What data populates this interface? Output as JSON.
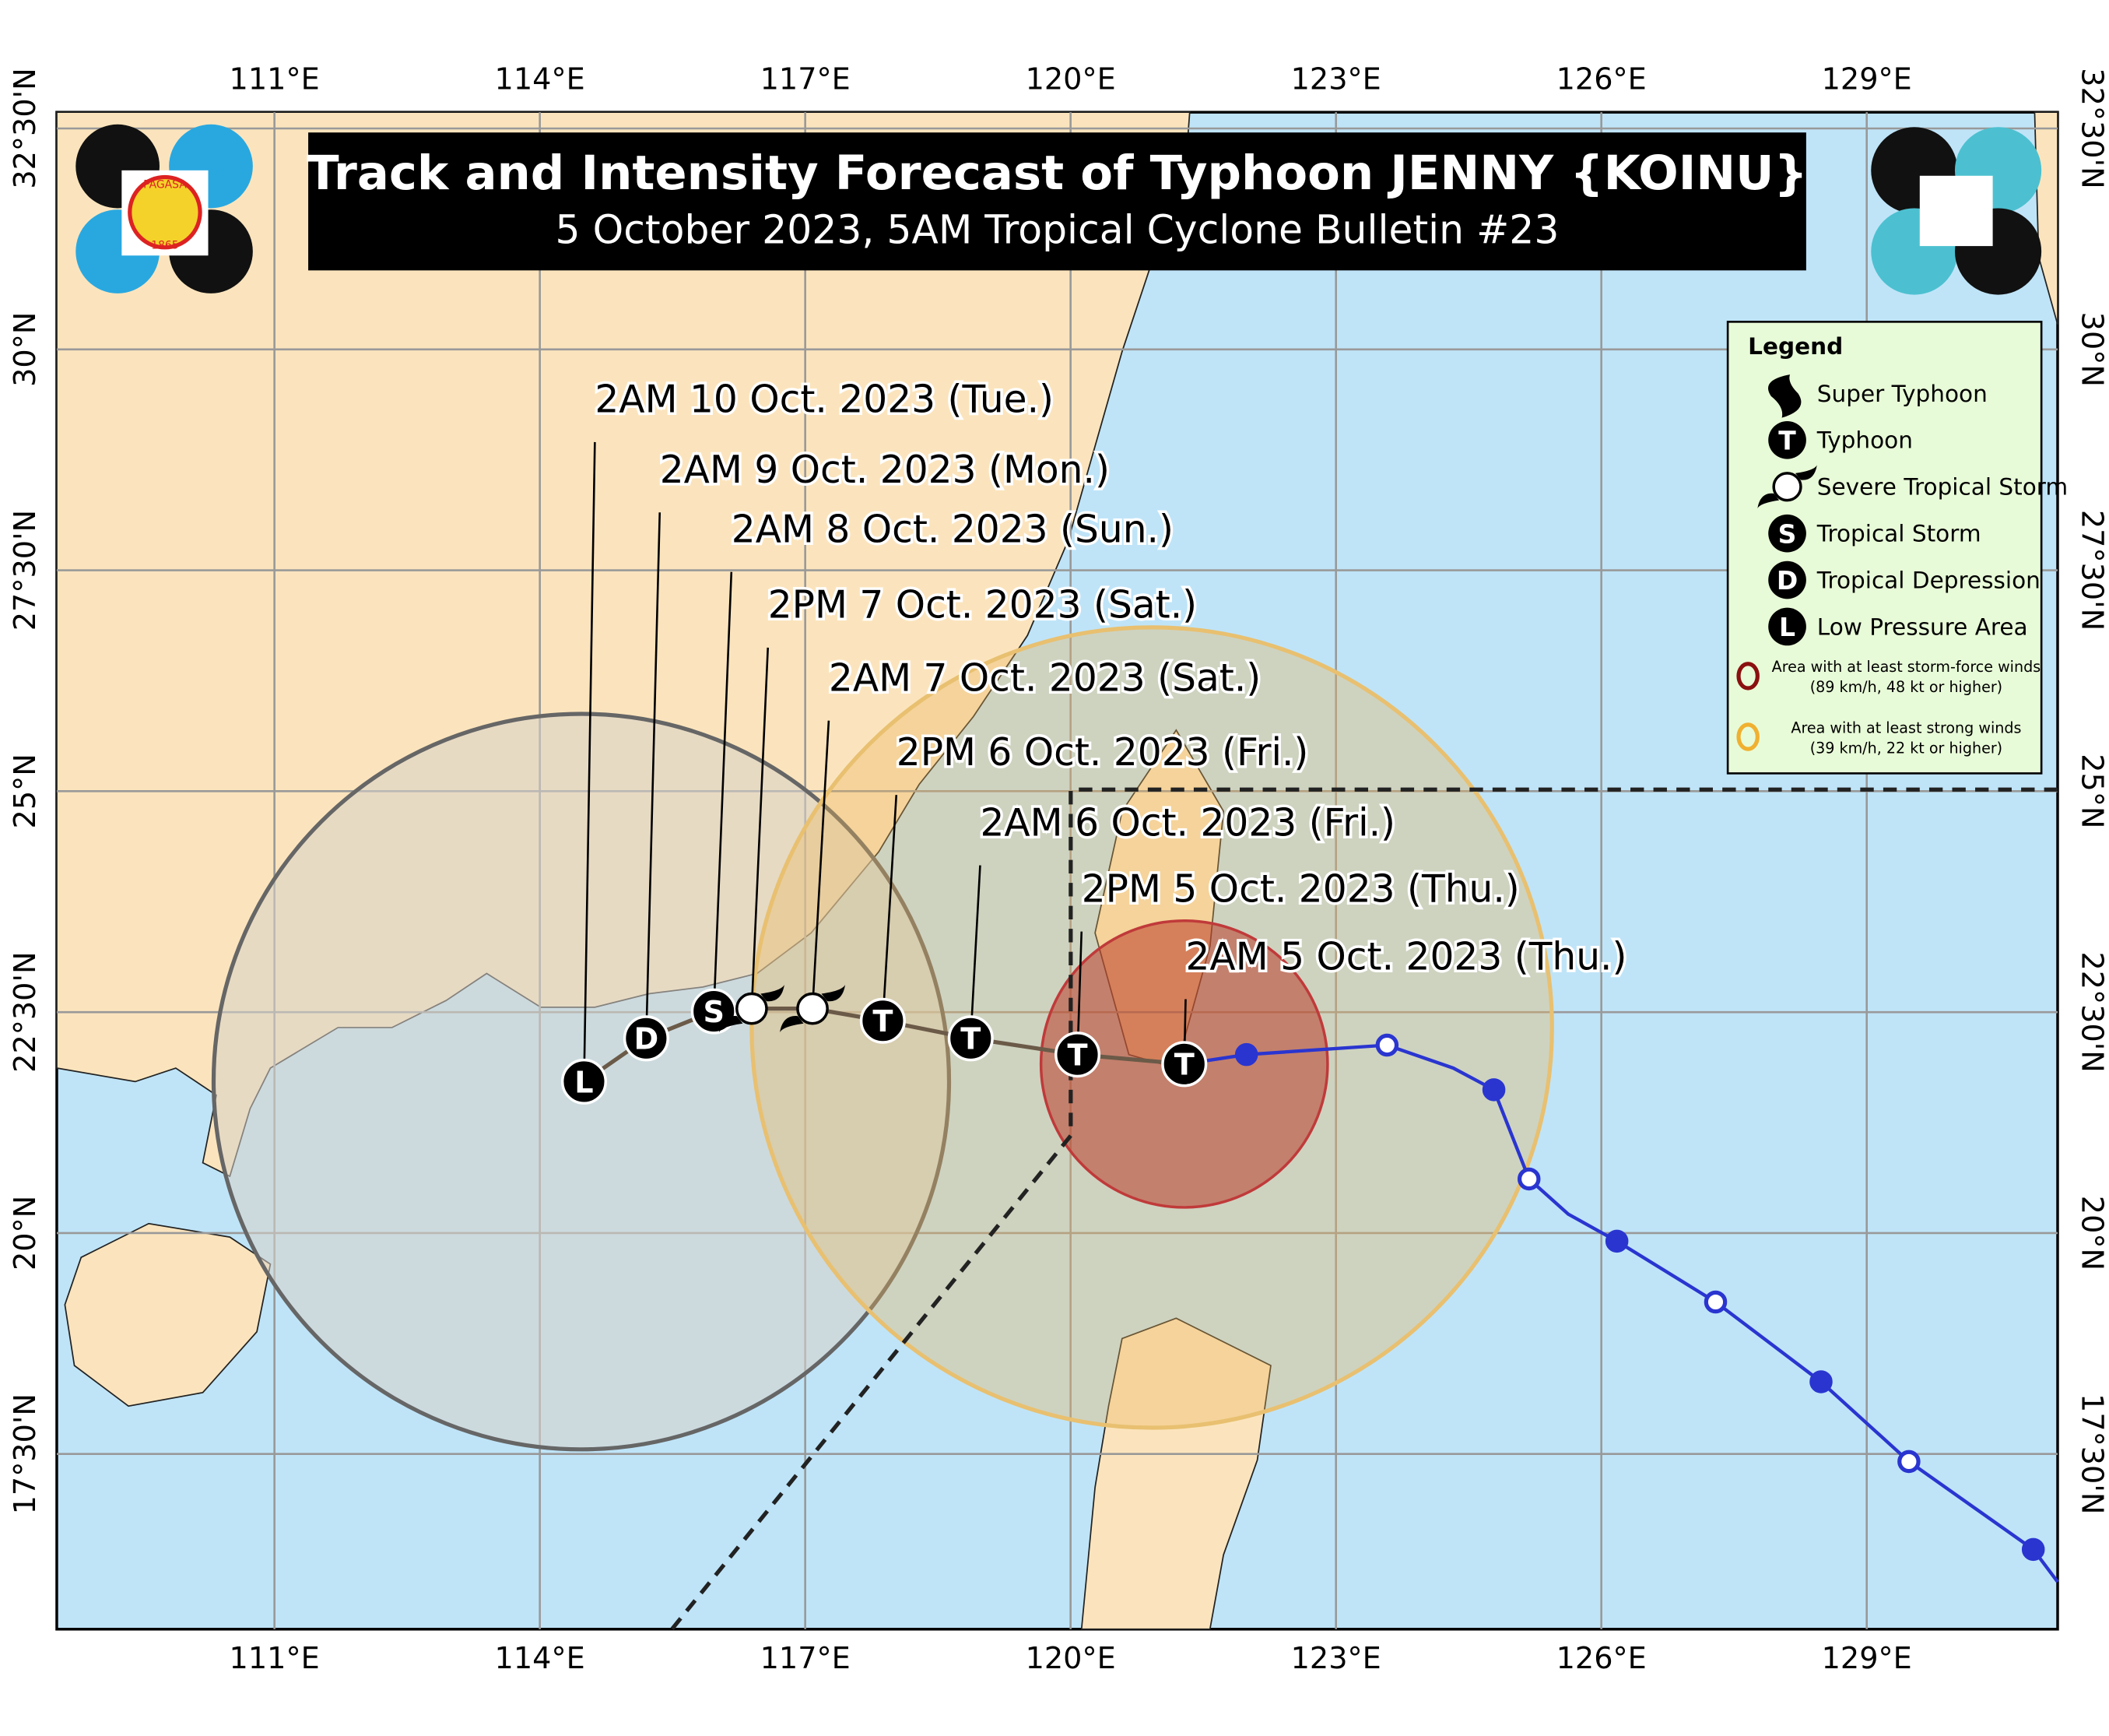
{
  "header": {
    "title": "Track and Intensity Forecast of Typhoon JENNY {KOINU}",
    "subtitle": "5 October 2023, 5AM Tropical Cyclone Bulletin #23"
  },
  "logo": {
    "name": "PAGASA",
    "year": "1865"
  },
  "axes": {
    "longitudes": [
      "111°E",
      "114°E",
      "117°E",
      "120°E",
      "123°E",
      "126°E",
      "129°E"
    ],
    "latitudes": [
      "32°30'N",
      "30°N",
      "27°30'N",
      "25°N",
      "22°30'N",
      "20°N",
      "17°30'N"
    ]
  },
  "forecast_labels": [
    "2AM 10 Oct. 2023 (Tue.)",
    "2AM 9 Oct. 2023 (Mon.)",
    "2AM 8 Oct. 2023 (Sun.)",
    "2PM 7 Oct. 2023 (Sat.)",
    "2AM 7 Oct. 2023 (Sat.)",
    "2PM 6 Oct. 2023 (Fri.)",
    "2AM 6 Oct. 2023 (Fri.)",
    "2PM 5 Oct. 2023 (Thu.)",
    "2AM 5 Oct. 2023 (Thu.)"
  ],
  "track_symbols": [
    "L",
    "D",
    "S",
    "T",
    "T",
    "T",
    "T"
  ],
  "legend": {
    "title": "Legend",
    "items": [
      {
        "label": "Super Typhoon"
      },
      {
        "symbol": "T",
        "label": "Typhoon"
      },
      {
        "label": "Severe Tropical Storm"
      },
      {
        "symbol": "S",
        "label": "Tropical Storm"
      },
      {
        "symbol": "D",
        "label": "Tropical Depression"
      },
      {
        "symbol": "L",
        "label": "Low Pressure Area"
      }
    ],
    "areas": [
      {
        "label": "Area with at least storm-force winds",
        "detail": "(89 km/h, 48 kt or higher)"
      },
      {
        "label": "Area with at least strong winds",
        "detail": "(39 km/h, 22 kt or higher)"
      }
    ]
  }
}
